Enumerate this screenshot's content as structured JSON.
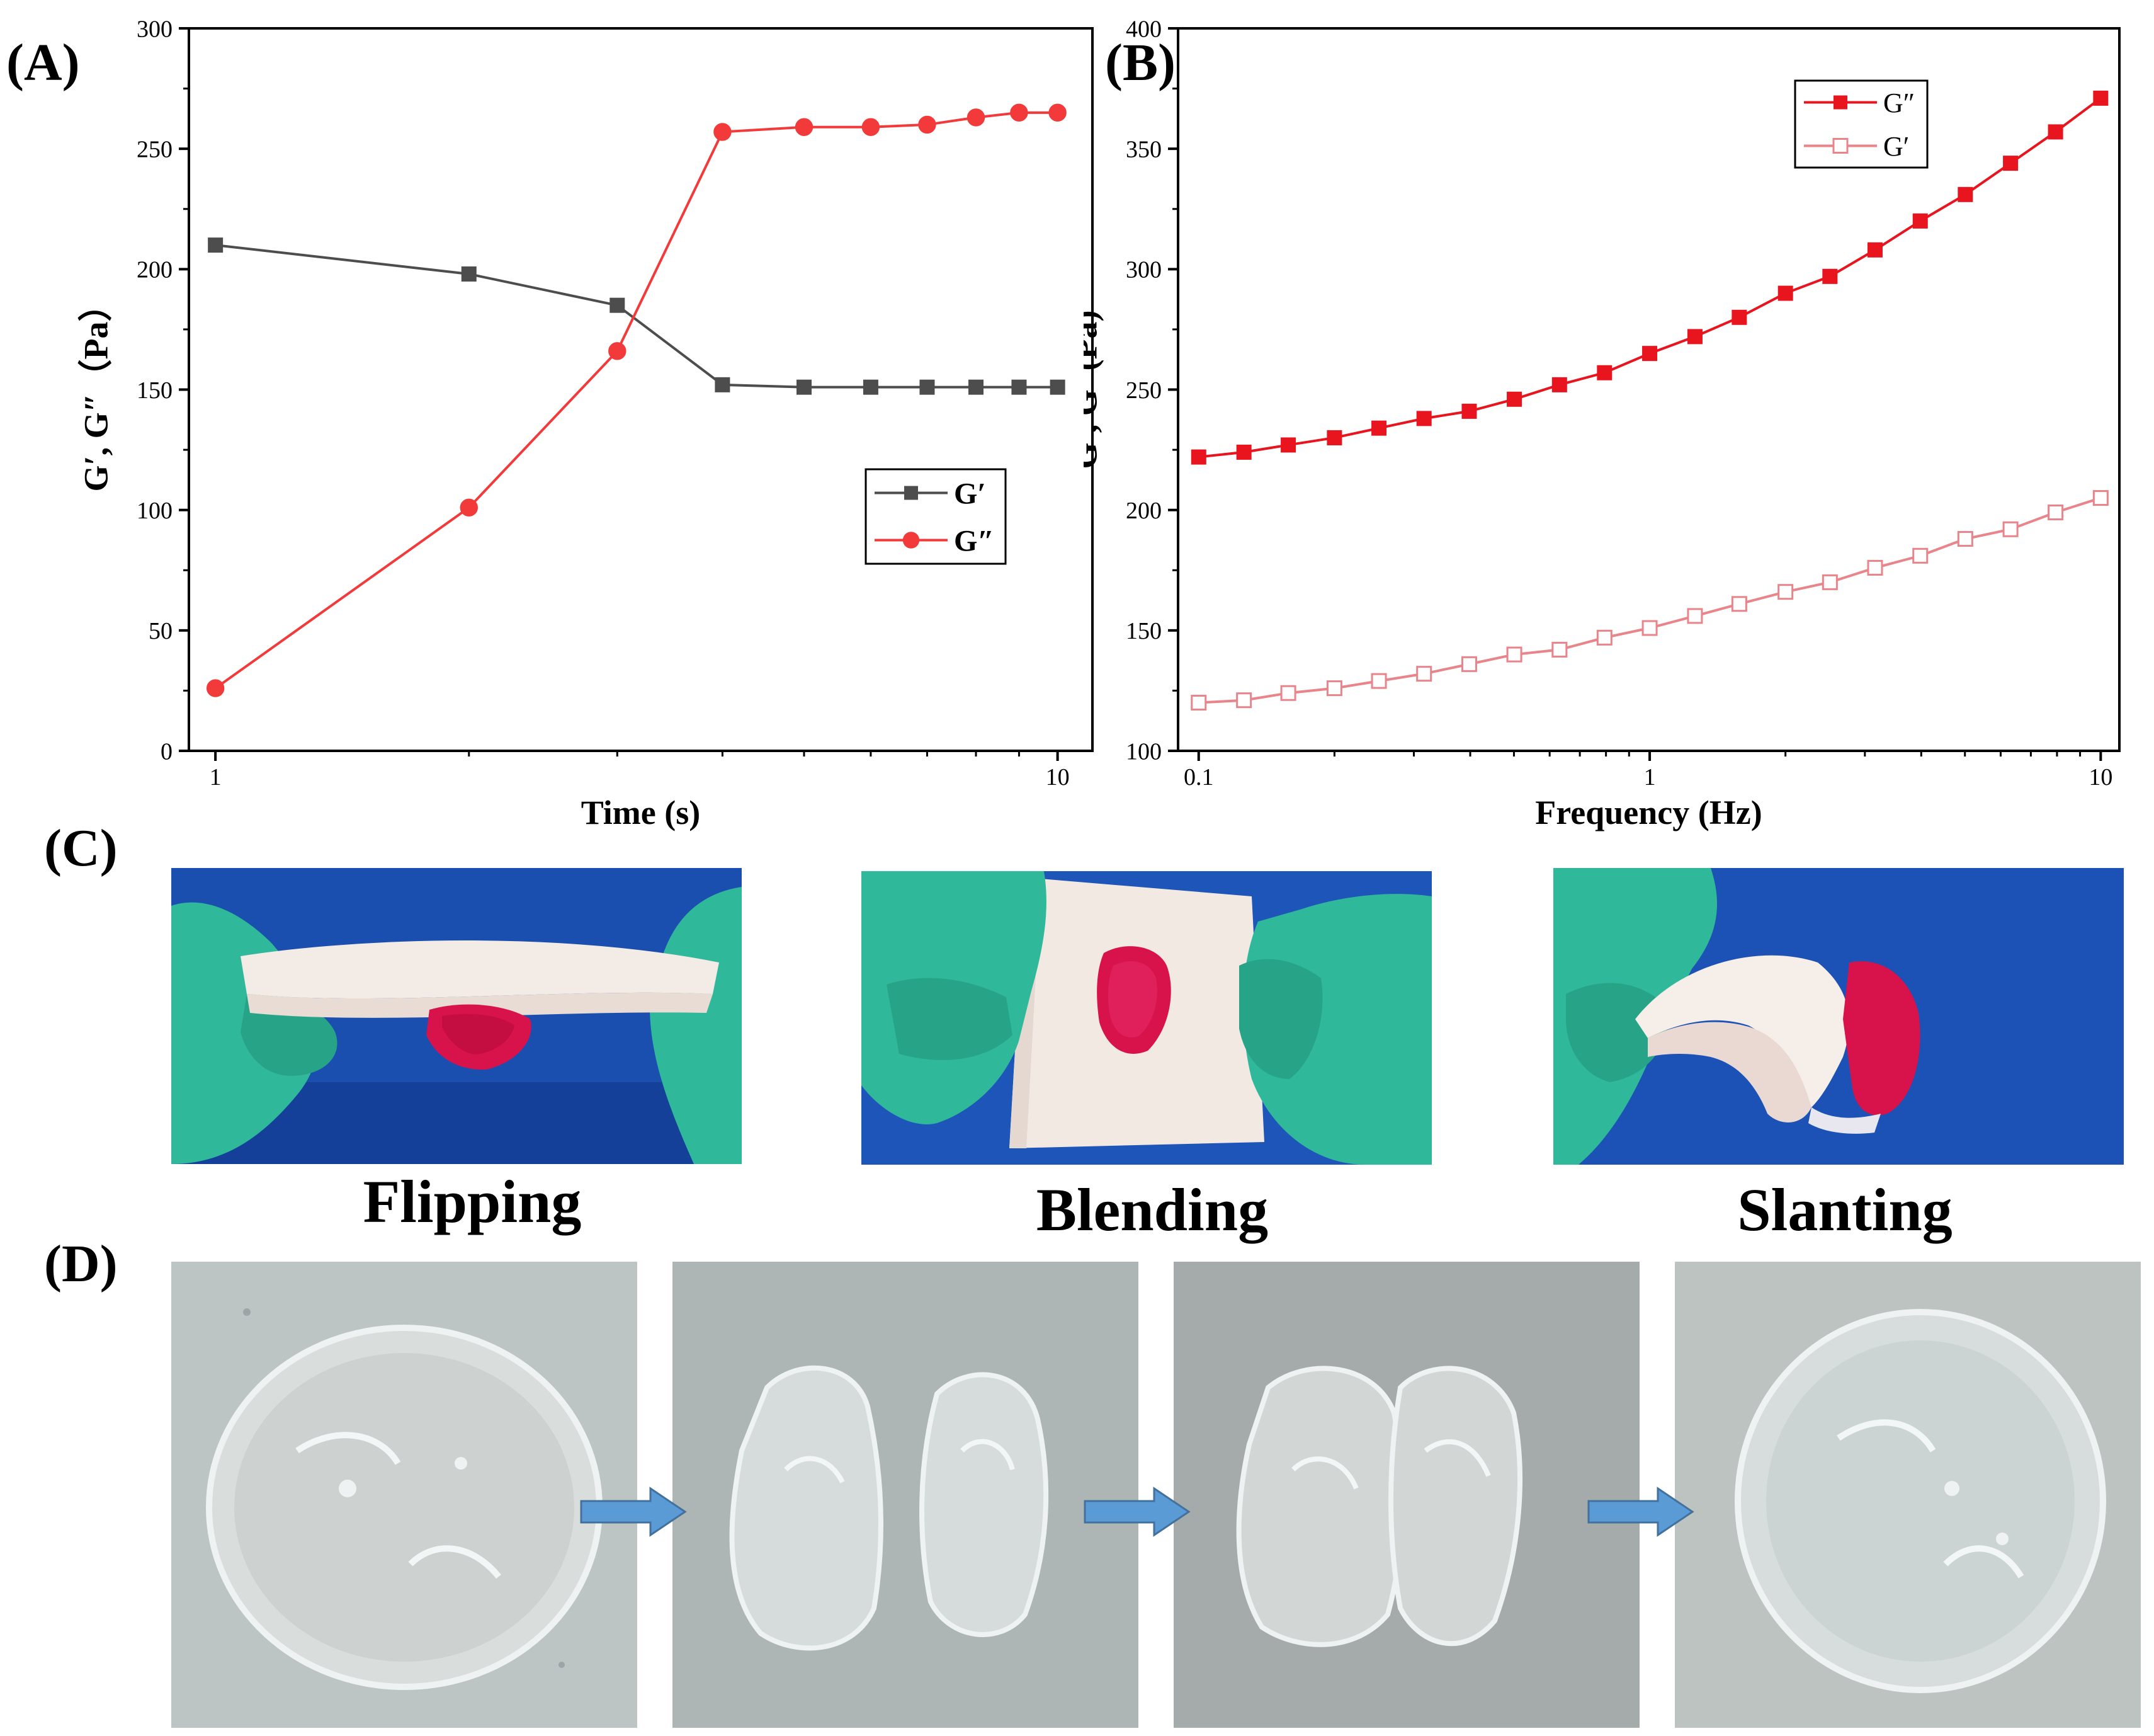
{
  "panels": {
    "a": "(A)",
    "b": "(B)",
    "c": "(C)",
    "d": "(D)"
  },
  "chart_data": [
    {
      "type": "line",
      "panel": "(A)",
      "xlabel": "Time (s)",
      "ylabel": "G′,  G″（Pa）",
      "x_scale": "log",
      "xlim": [
        0.93,
        11
      ],
      "ylim": [
        0,
        300
      ],
      "x_ticks": [
        1,
        10
      ],
      "y_ticks": [
        0,
        50,
        100,
        150,
        200,
        250,
        300
      ],
      "grid": false,
      "legend_position": "center-right",
      "x": [
        1,
        2,
        3,
        4,
        5,
        6,
        7,
        8,
        9,
        10
      ],
      "series": [
        {
          "name": "G′",
          "color": "#4d4d4d",
          "marker": "square-filled",
          "values": [
            210,
            198,
            185,
            152,
            151,
            151,
            151,
            151,
            151,
            151
          ]
        },
        {
          "name": "G″",
          "color": "#f23a3a",
          "marker": "circle-filled",
          "values": [
            26,
            101,
            166,
            257,
            259,
            259,
            260,
            263,
            265,
            265
          ]
        }
      ]
    },
    {
      "type": "line",
      "panel": "(B)",
      "xlabel": "Frequency (Hz)",
      "ylabel": "G′,  G″(Pa)",
      "x_scale": "log",
      "xlim": [
        0.09,
        11
      ],
      "ylim": [
        100,
        400
      ],
      "x_ticks": [
        0.1,
        1,
        10
      ],
      "y_ticks": [
        100,
        150,
        200,
        250,
        300,
        350,
        400
      ],
      "grid": false,
      "legend_position": "top-right",
      "x": [
        0.1,
        0.126,
        0.158,
        0.2,
        0.251,
        0.316,
        0.398,
        0.501,
        0.631,
        0.794,
        1,
        1.26,
        1.58,
        2,
        2.51,
        3.16,
        3.98,
        5.01,
        6.31,
        7.94,
        10
      ],
      "series": [
        {
          "name": "G″",
          "color": "#e8141e",
          "marker": "square-filled",
          "values": [
            222,
            224,
            227,
            230,
            234,
            238,
            241,
            246,
            252,
            257,
            265,
            272,
            280,
            290,
            297,
            308,
            320,
            331,
            344,
            357,
            371
          ]
        },
        {
          "name": "G′",
          "color": "#e8848a",
          "marker": "square-open",
          "values": [
            120,
            121,
            124,
            126,
            129,
            132,
            136,
            140,
            142,
            147,
            151,
            156,
            161,
            166,
            170,
            176,
            181,
            188,
            192,
            199,
            205
          ]
        }
      ]
    }
  ],
  "captions": {
    "flipping": "Flipping",
    "blending": "Blending",
    "slanting": "Slanting"
  },
  "colors": {
    "blue_background": "#1a4fb0",
    "glove": "#2fb89a",
    "sponge": "#f1e6df",
    "stain": "#d8124a",
    "concrete": "#b9c0c0",
    "arrow": "#5b9bd5"
  }
}
